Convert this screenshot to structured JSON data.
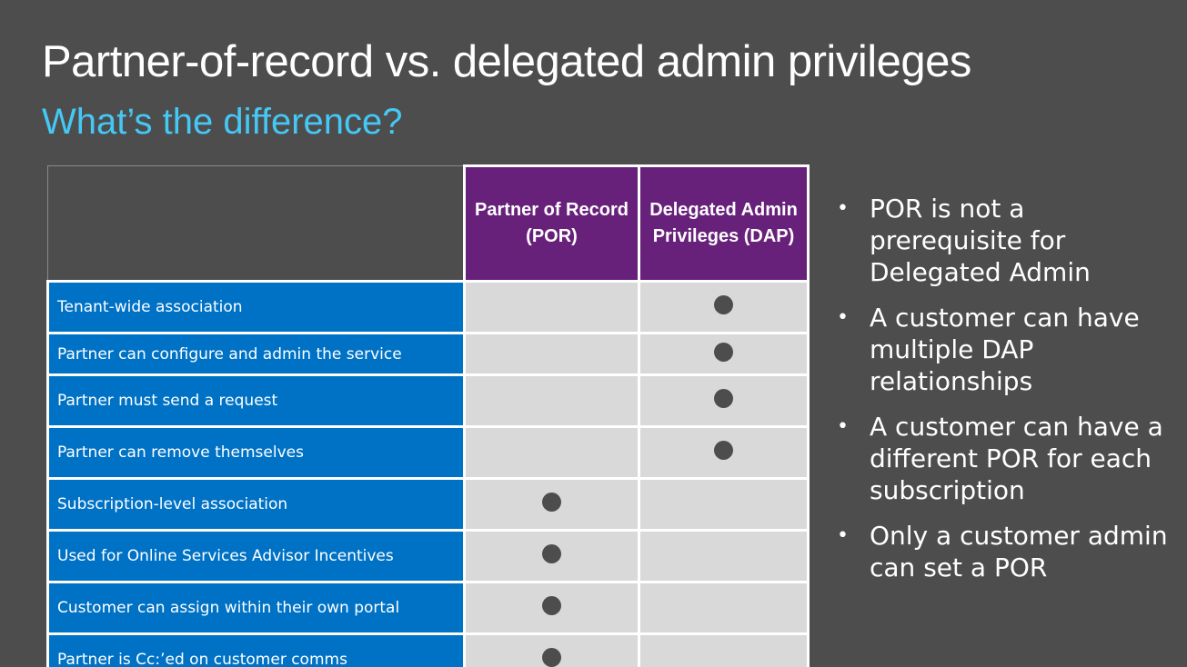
{
  "slide": {
    "title": "Partner-of-record vs. delegated admin privileges",
    "subtitle": "What’s the difference?"
  },
  "table": {
    "columns": [
      {
        "label": "Partner of Record (POR)"
      },
      {
        "label": "Delegated Admin Privileges (DAP)"
      }
    ],
    "rows": [
      {
        "label": "Tenant-wide association",
        "por": false,
        "dap": true
      },
      {
        "label": "Partner can configure and admin the service",
        "por": false,
        "dap": true
      },
      {
        "label": "Partner must send a request",
        "por": false,
        "dap": true
      },
      {
        "label": "Partner can remove themselves",
        "por": false,
        "dap": true
      },
      {
        "label": "Subscription-level association",
        "por": true,
        "dap": false
      },
      {
        "label": "Used for Online Services Advisor Incentives",
        "por": true,
        "dap": false
      },
      {
        "label": "Customer can assign within their own portal",
        "por": true,
        "dap": false
      },
      {
        "label": "Partner is Cc:’ed on customer comms",
        "por": true,
        "dap": false
      }
    ]
  },
  "bullets": [
    "POR is not a prerequisite for Delegated Admin",
    "A customer can have multiple DAP relationships",
    "A customer can have a different POR for each subscription",
    "Only a customer admin can set a POR"
  ],
  "colors": {
    "background": "#4d4d4d",
    "subtitle": "#44c8f5",
    "header": "#68217a",
    "feature": "#0072c6",
    "mark_cell": "#d9d9d9",
    "dot": "#4d4d4d"
  },
  "icons": {
    "bullet": "bullet-dot-icon",
    "check": "filled-circle-icon"
  }
}
